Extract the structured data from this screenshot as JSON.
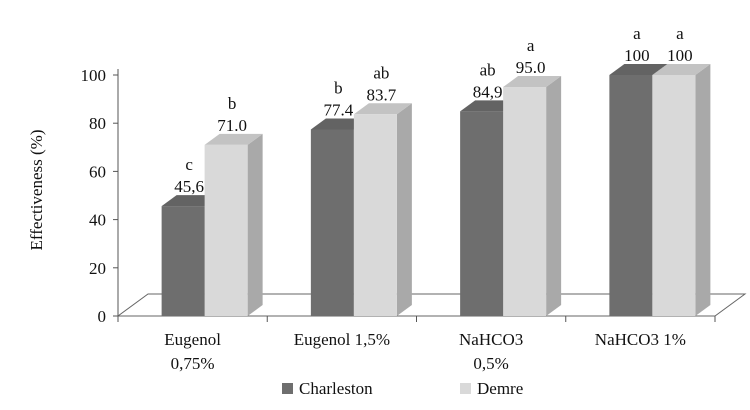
{
  "chart_data": {
    "type": "bar",
    "style": "3d-clustered",
    "ylabel": "Effectiveness (%)",
    "xlabel": "",
    "ylim": [
      0,
      100
    ],
    "yticks": [
      0,
      20,
      40,
      60,
      80,
      100
    ],
    "grid": false,
    "legend_position": "bottom",
    "categories": [
      [
        "Eugenol",
        "0,75%"
      ],
      [
        "Eugenol 1,5%"
      ],
      [
        "NaHCO3",
        "0,5%"
      ],
      [
        "NaHCO3 1%"
      ]
    ],
    "series": [
      {
        "name": "Charleston",
        "color": "#6e6e6e",
        "values": [
          45.6,
          77.4,
          84.9,
          100
        ],
        "value_labels": [
          "45,6",
          "77.4",
          "84,9",
          "100"
        ],
        "letters": [
          "c",
          "b",
          "ab",
          "a"
        ]
      },
      {
        "name": "Demre",
        "color": "#d9d9d9",
        "values": [
          71.0,
          83.7,
          95.0,
          100
        ],
        "value_labels": [
          "71.0",
          "83.7",
          "95.0",
          "100"
        ],
        "letters": [
          "b",
          "ab",
          "a",
          "a"
        ]
      }
    ]
  }
}
